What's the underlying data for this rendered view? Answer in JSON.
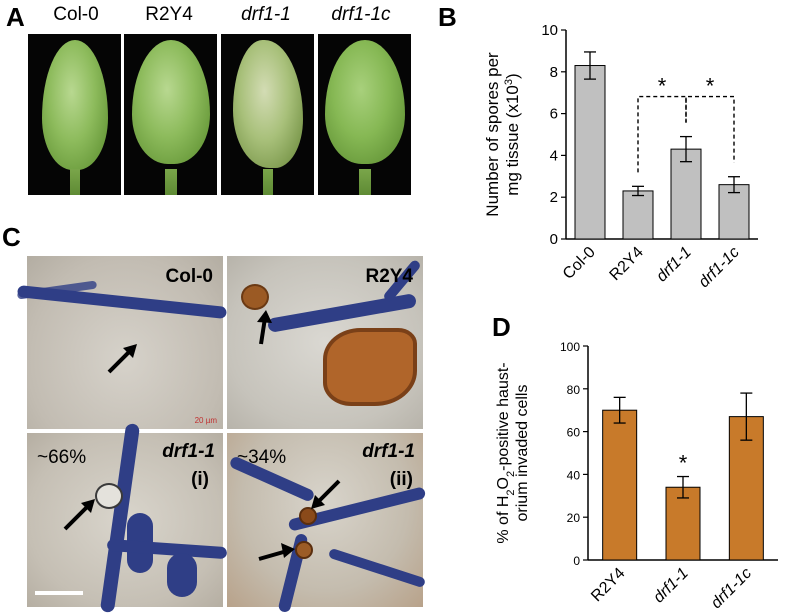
{
  "panels": {
    "a": {
      "label": "A",
      "leaves": [
        {
          "name": "Col-0",
          "italic": false
        },
        {
          "name": "R2Y4",
          "italic": false
        },
        {
          "name": "drf1-1",
          "italic": true
        },
        {
          "name": "drf1-1c",
          "italic": true
        }
      ]
    },
    "b": {
      "label": "B"
    },
    "c": {
      "label": "C",
      "tiles": [
        {
          "caption": "Col-0",
          "italic": false,
          "scale_text": "20 µm"
        },
        {
          "caption": "R2Y4",
          "italic": false
        },
        {
          "caption": "drf1-1",
          "sub": "(i)",
          "italic": true,
          "percent": "~66%"
        },
        {
          "caption": "drf1-1",
          "sub": "(ii)",
          "italic": true,
          "percent": "~34%"
        }
      ]
    },
    "d": {
      "label": "D"
    }
  },
  "colors": {
    "bar_b": "#c0c0c0",
    "bar_d": "#c87a2a",
    "hypha": "#2f3e86",
    "stain": "#a0521e"
  },
  "chart_data": [
    {
      "type": "bar",
      "panel": "B",
      "categories": [
        "Col-0",
        "R2Y4",
        "drf1-1",
        "drf1-1c"
      ],
      "category_italic": [
        false,
        false,
        true,
        true
      ],
      "values": [
        8.3,
        2.3,
        4.3,
        2.6
      ],
      "errors": [
        0.65,
        0.22,
        0.6,
        0.38
      ],
      "ylabel_line1": "Number of spores per",
      "ylabel_line2": "mg tissue (x10",
      "ylabel_sup": "3",
      "ylabel_close": ")",
      "ylim": [
        0,
        10
      ],
      "yticks": [
        0,
        2,
        4,
        6,
        8,
        10
      ],
      "significance": [
        {
          "from": 1,
          "to": 2,
          "mark": "*"
        },
        {
          "from": 2,
          "to": 3,
          "mark": "*"
        }
      ]
    },
    {
      "type": "bar",
      "panel": "D",
      "categories": [
        "R2Y4",
        "drf1-1",
        "drf1-1c"
      ],
      "category_italic": [
        false,
        true,
        true
      ],
      "values": [
        70,
        34,
        67
      ],
      "errors": [
        6,
        5,
        11
      ],
      "ylabel_line1": "% of H2O2-positive haust-",
      "ylabel_line2": "orium invaded cells",
      "ylim": [
        0,
        100
      ],
      "yticks": [
        0,
        20,
        40,
        60,
        80,
        100
      ],
      "significance": [
        {
          "on": 1,
          "mark": "*"
        }
      ]
    }
  ]
}
